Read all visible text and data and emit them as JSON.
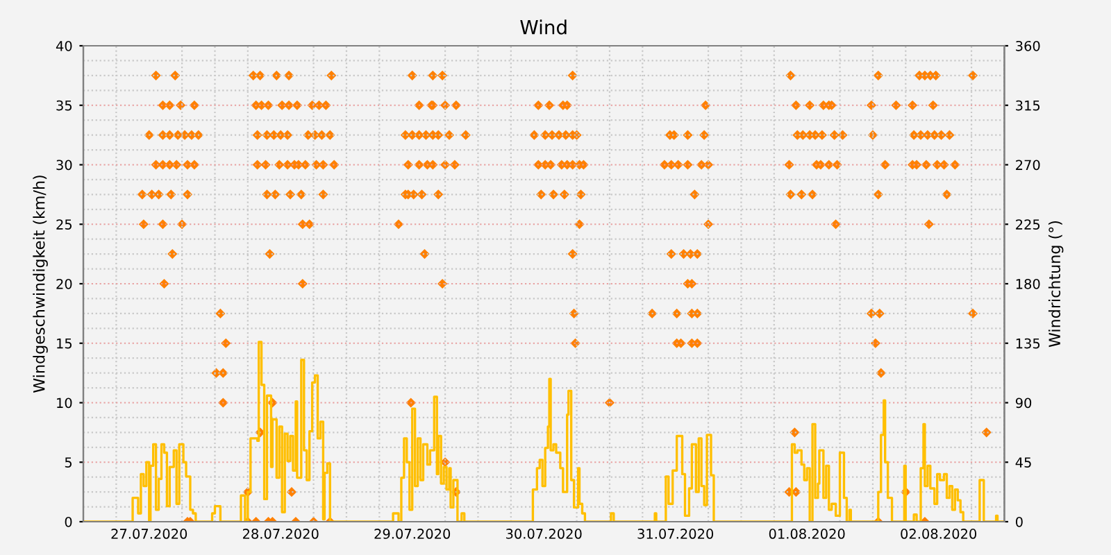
{
  "chart_data": {
    "type": "step",
    "title": "Wind",
    "ylabel": "Windgeschwindigkeit (km/h)",
    "y2label": "Windrichtung (°)",
    "xlim": [
      "2020-07-27T00:00",
      "2020-08-03T00:00"
    ],
    "xticks": [
      {
        "value": "2020-07-27T12:00",
        "label": "27.07.2020"
      },
      {
        "value": "2020-07-28T12:00",
        "label": "28.07.2020"
      },
      {
        "value": "2020-07-29T12:00",
        "label": "29.07.2020"
      },
      {
        "value": "2020-07-30T12:00",
        "label": "30.07.2020"
      },
      {
        "value": "2020-07-31T12:00",
        "label": "31.07.2020"
      },
      {
        "value": "2020-08-01T12:00",
        "label": "01.08.2020"
      },
      {
        "value": "2020-08-02T12:00",
        "label": "02.08.2020"
      }
    ],
    "ylim": [
      0,
      40
    ],
    "yticks": [
      0,
      5,
      10,
      15,
      20,
      25,
      30,
      35,
      40
    ],
    "y2lim": [
      0,
      360
    ],
    "y2ticks": [
      0,
      45,
      90,
      135,
      180,
      225,
      270,
      315,
      360
    ],
    "grid": true,
    "series": [
      {
        "color": "#ffbf00",
        "line_style": "solid",
        "x": [
          "2020-07-27T00:00",
          "2020-07-27T09:00",
          "2020-07-27T10:00",
          "2020-07-27T10:30",
          "2020-07-27T11:00",
          "2020-07-27T11:30",
          "2020-07-27T12:00",
          "2020-07-27T12:15",
          "2020-07-27T12:45",
          "2020-07-27T13:15",
          "2020-07-27T13:45",
          "2020-07-27T14:15",
          "2020-07-27T14:45",
          "2020-07-27T15:15",
          "2020-07-27T15:45",
          "2020-07-27T16:30",
          "2020-07-27T17:00",
          "2020-07-27T17:30",
          "2020-07-27T18:15",
          "2020-07-27T18:45",
          "2020-07-27T19:30",
          "2020-07-27T20:00",
          "2020-07-27T20:30",
          "2020-07-27T23:30",
          "2020-07-28T00:00",
          "2020-07-28T01:00",
          "2020-07-28T04:45",
          "2020-07-28T05:30",
          "2020-07-28T06:00",
          "2020-07-28T06:30",
          "2020-07-28T07:45",
          "2020-07-28T08:00",
          "2020-07-28T08:30",
          "2020-07-28T09:00",
          "2020-07-28T09:30",
          "2020-07-28T10:15",
          "2020-07-28T10:30",
          "2020-07-28T11:15",
          "2020-07-28T11:45",
          "2020-07-28T12:15",
          "2020-07-28T12:45",
          "2020-07-28T13:15",
          "2020-07-28T13:45",
          "2020-07-28T14:15",
          "2020-07-28T14:45",
          "2020-07-28T15:00",
          "2020-07-28T15:45",
          "2020-07-28T16:15",
          "2020-07-28T16:45",
          "2020-07-28T17:15",
          "2020-07-28T17:45",
          "2020-07-28T18:15",
          "2020-07-28T18:45",
          "2020-07-28T19:15",
          "2020-07-28T19:45",
          "2020-07-28T20:00",
          "2020-07-28T20:30",
          "2020-07-28T21:00",
          "2020-07-29T08:30",
          "2020-07-29T09:30",
          "2020-07-29T10:00",
          "2020-07-29T10:30",
          "2020-07-29T11:00",
          "2020-07-29T11:30",
          "2020-07-29T12:00",
          "2020-07-29T12:30",
          "2020-07-29T13:00",
          "2020-07-29T13:30",
          "2020-07-29T14:00",
          "2020-07-29T14:45",
          "2020-07-29T15:15",
          "2020-07-29T16:00",
          "2020-07-29T16:30",
          "2020-07-29T16:45",
          "2020-07-29T17:15",
          "2020-07-29T17:45",
          "2020-07-29T18:15",
          "2020-07-29T18:45",
          "2020-07-29T19:00",
          "2020-07-29T19:30",
          "2020-07-29T20:15",
          "2020-07-29T21:00",
          "2020-07-29T21:30",
          "2020-07-30T10:00",
          "2020-07-30T10:45",
          "2020-07-30T11:15",
          "2020-07-30T11:45",
          "2020-07-30T12:15",
          "2020-07-30T12:45",
          "2020-07-30T13:00",
          "2020-07-30T13:15",
          "2020-07-30T13:45",
          "2020-07-30T14:15",
          "2020-07-30T15:00",
          "2020-07-30T15:30",
          "2020-07-30T16:15",
          "2020-07-30T16:30",
          "2020-07-30T17:00",
          "2020-07-30T17:30",
          "2020-07-30T18:15",
          "2020-07-30T18:30",
          "2020-07-30T19:00",
          "2020-07-30T19:30",
          "2020-07-31T00:15",
          "2020-07-31T00:45",
          "2020-07-31T08:15",
          "2020-07-31T08:30",
          "2020-07-31T10:15",
          "2020-07-31T10:45",
          "2020-07-31T11:30",
          "2020-07-31T12:15",
          "2020-07-31T13:15",
          "2020-07-31T13:45",
          "2020-07-31T14:30",
          "2020-07-31T15:00",
          "2020-07-31T15:45",
          "2020-07-31T16:15",
          "2020-07-31T16:45",
          "2020-07-31T17:15",
          "2020-07-31T17:45",
          "2020-07-31T18:30",
          "2020-07-31T19:00",
          "2020-08-01T09:15",
          "2020-08-01T09:45",
          "2020-08-01T10:15",
          "2020-08-01T11:00",
          "2020-08-01T11:30",
          "2020-08-01T12:00",
          "2020-08-01T12:30",
          "2020-08-01T13:00",
          "2020-08-01T13:30",
          "2020-08-01T14:00",
          "2020-08-01T14:15",
          "2020-08-01T15:00",
          "2020-08-01T15:30",
          "2020-08-01T16:00",
          "2020-08-01T16:30",
          "2020-08-01T17:15",
          "2020-08-01T18:00",
          "2020-08-01T18:45",
          "2020-08-01T19:15",
          "2020-08-01T19:45",
          "2020-08-01T20:00",
          "2020-08-02T01:00",
          "2020-08-02T01:30",
          "2020-08-02T02:00",
          "2020-08-02T02:15",
          "2020-08-02T02:45",
          "2020-08-02T03:30",
          "2020-08-02T05:45",
          "2020-08-02T06:00",
          "2020-08-02T07:30",
          "2020-08-02T08:00",
          "2020-08-02T08:45",
          "2020-08-02T09:15",
          "2020-08-02T09:30",
          "2020-08-02T10:00",
          "2020-08-02T10:30",
          "2020-08-02T11:15",
          "2020-08-02T11:45",
          "2020-08-02T12:15",
          "2020-08-02T13:00",
          "2020-08-02T13:30",
          "2020-08-02T14:00",
          "2020-08-02T14:30",
          "2020-08-02T15:00",
          "2020-08-02T15:30",
          "2020-08-02T16:00",
          "2020-08-02T16:30",
          "2020-08-02T19:30",
          "2020-08-02T20:15",
          "2020-08-02T22:30",
          "2020-08-02T22:45",
          "2020-08-02T23:45"
        ],
        "values": [
          0,
          2.0,
          0.7,
          4.0,
          3.0,
          5.0,
          0,
          4.7,
          6.5,
          1.0,
          3.6,
          6.5,
          5.8,
          1.3,
          4.6,
          6.0,
          1.5,
          6.5,
          5.0,
          3.8,
          1.0,
          0.7,
          0,
          0.7,
          1.3,
          0,
          2.2,
          0,
          2.5,
          7.0,
          6.8,
          15.1,
          11.5,
          1.9,
          10.6,
          4.6,
          8.6,
          3.7,
          8.0,
          0.8,
          7.4,
          5.1,
          7.2,
          4.3,
          10.1,
          3.7,
          13.6,
          6.0,
          3.5,
          7.6,
          11.7,
          12.3,
          7.0,
          8.4,
          0.2,
          4.1,
          4.9,
          0,
          0.7,
          0,
          3.7,
          7.0,
          5.0,
          1.0,
          9.5,
          3.0,
          7.0,
          3.5,
          6.5,
          4.8,
          6.0,
          10.5,
          4.0,
          7.2,
          3.2,
          4.6,
          2.7,
          4.5,
          1.2,
          3.5,
          0,
          0.7,
          0,
          2.7,
          4.5,
          5.2,
          3.0,
          6.2,
          8.0,
          12.0,
          6.0,
          6.5,
          5.8,
          4.5,
          2.5,
          9.0,
          11.0,
          3.5,
          1.2,
          4.5,
          1.5,
          0.7,
          0,
          0.7,
          0,
          0.7,
          0,
          3.8,
          1.5,
          4.3,
          7.2,
          4.0,
          0.5,
          2.8,
          6.5,
          2.5,
          7.0,
          3.0,
          1.4,
          7.3,
          3.9,
          0,
          6.5,
          5.8,
          6.0,
          4.8,
          3.5,
          4.5,
          0,
          8.2,
          2.0,
          3.2,
          6.0,
          2.0,
          4.7,
          1.0,
          1.5,
          0.5,
          5.8,
          2.0,
          0,
          1.0,
          0,
          2.5,
          7.3,
          10.2,
          5.0,
          2.0,
          0,
          4.7,
          0,
          0.6,
          0,
          4.5,
          8.2,
          3.0,
          4.7,
          2.8,
          1.5,
          4.0,
          3.5,
          4.0,
          2.0,
          3.0,
          1.0,
          2.7,
          1.8,
          0.8,
          0,
          3.5,
          0,
          0.5,
          0,
          0
        ]
      },
      {
        "type": "scatter",
        "axis": "y2",
        "color": "#ff8000",
        "marker": "diamond",
        "x": [
          "2020-07-27T13:15",
          "2020-07-27T16:45",
          "2020-07-28T07:00",
          "2020-07-28T08:15",
          "2020-07-28T11:15",
          "2020-07-28T13:30",
          "2020-07-28T21:15",
          "2020-07-29T12:00",
          "2020-07-29T15:45",
          "2020-07-29T17:30",
          "2020-07-30T17:15",
          "2020-08-01T09:00",
          "2020-08-02T01:00",
          "2020-08-02T08:30",
          "2020-08-02T09:30",
          "2020-08-02T10:30",
          "2020-08-02T11:30",
          "2020-08-02T18:15",
          "2020-07-27T14:30",
          "2020-07-27T15:45",
          "2020-07-27T17:45",
          "2020-07-27T20:15",
          "2020-07-28T07:30",
          "2020-07-28T08:30",
          "2020-07-28T09:45",
          "2020-07-28T12:15",
          "2020-07-28T13:30",
          "2020-07-28T15:00",
          "2020-07-28T17:45",
          "2020-07-28T19:00",
          "2020-07-28T20:15",
          "2020-07-29T13:15",
          "2020-07-29T15:30",
          "2020-07-29T15:45",
          "2020-07-29T18:00",
          "2020-07-29T20:00",
          "2020-07-30T11:00",
          "2020-07-30T13:00",
          "2020-07-30T15:30",
          "2020-07-30T16:15",
          "2020-07-31T17:30",
          "2020-08-01T10:00",
          "2020-08-01T12:30",
          "2020-08-01T15:00",
          "2020-08-01T16:00",
          "2020-08-01T16:30",
          "2020-08-01T23:45",
          "2020-08-02T04:15",
          "2020-08-02T07:15",
          "2020-08-02T11:00",
          "2020-07-27T12:00",
          "2020-07-27T14:30",
          "2020-07-27T15:45",
          "2020-07-27T17:15",
          "2020-07-27T18:30",
          "2020-07-27T19:45",
          "2020-07-27T21:00",
          "2020-07-28T07:45",
          "2020-07-28T09:30",
          "2020-07-28T10:45",
          "2020-07-28T12:00",
          "2020-07-28T13:15",
          "2020-07-28T17:00",
          "2020-07-28T18:15",
          "2020-07-28T19:30",
          "2020-07-28T21:00",
          "2020-07-29T10:45",
          "2020-07-29T12:00",
          "2020-07-29T13:15",
          "2020-07-29T14:30",
          "2020-07-29T15:45",
          "2020-07-29T16:45",
          "2020-07-29T18:45",
          "2020-07-29T21:45",
          "2020-07-30T10:15",
          "2020-07-30T12:15",
          "2020-07-30T13:30",
          "2020-07-30T14:45",
          "2020-07-30T16:00",
          "2020-07-30T17:15",
          "2020-07-30T18:00",
          "2020-07-31T11:00",
          "2020-07-31T11:45",
          "2020-07-31T14:15",
          "2020-07-31T17:15",
          "2020-08-01T10:15",
          "2020-08-01T11:15",
          "2020-08-01T12:30",
          "2020-08-01T13:30",
          "2020-08-01T14:45",
          "2020-08-01T17:00",
          "2020-08-01T18:30",
          "2020-08-02T00:00",
          "2020-08-02T07:30",
          "2020-08-02T08:45",
          "2020-08-02T10:00",
          "2020-08-02T11:15",
          "2020-08-02T12:30",
          "2020-08-02T14:00",
          "2020-07-27T13:15",
          "2020-07-27T14:30",
          "2020-07-27T15:45",
          "2020-07-27T17:00",
          "2020-07-27T19:00",
          "2020-07-27T20:15",
          "2020-07-28T07:45",
          "2020-07-28T09:15",
          "2020-07-28T11:45",
          "2020-07-28T13:15",
          "2020-07-28T14:30",
          "2020-07-28T15:15",
          "2020-07-28T16:30",
          "2020-07-28T18:30",
          "2020-07-28T19:45",
          "2020-07-28T21:45",
          "2020-07-29T11:15",
          "2020-07-29T13:15",
          "2020-07-29T14:45",
          "2020-07-29T15:45",
          "2020-07-29T18:00",
          "2020-07-29T19:45",
          "2020-07-30T11:00",
          "2020-07-30T12:15",
          "2020-07-30T13:15",
          "2020-07-30T15:15",
          "2020-07-30T16:15",
          "2020-07-30T17:15",
          "2020-07-30T18:30",
          "2020-07-30T19:15",
          "2020-07-31T10:00",
          "2020-07-31T11:15",
          "2020-07-31T12:30",
          "2020-07-31T14:15",
          "2020-07-31T16:45",
          "2020-07-31T18:00",
          "2020-08-01T08:45",
          "2020-08-01T13:45",
          "2020-08-01T14:30",
          "2020-08-01T16:00",
          "2020-08-01T17:30",
          "2020-08-02T02:15",
          "2020-08-02T07:15",
          "2020-08-02T08:00",
          "2020-08-02T09:45",
          "2020-08-02T11:45",
          "2020-08-02T13:00",
          "2020-08-02T15:00",
          "2020-07-27T10:45",
          "2020-07-27T12:30",
          "2020-07-27T13:45",
          "2020-07-27T16:00",
          "2020-07-27T19:00",
          "2020-07-28T09:30",
          "2020-07-28T11:00",
          "2020-07-28T13:45",
          "2020-07-28T15:45",
          "2020-07-28T19:45",
          "2020-07-29T10:45",
          "2020-07-29T11:15",
          "2020-07-29T12:15",
          "2020-07-29T13:45",
          "2020-07-29T16:45",
          "2020-07-30T11:30",
          "2020-07-30T13:45",
          "2020-07-30T15:45",
          "2020-07-30T18:45",
          "2020-07-31T15:30",
          "2020-08-01T09:00",
          "2020-08-01T11:00",
          "2020-08-01T13:00",
          "2020-08-02T01:00",
          "2020-08-02T13:30",
          "2020-07-27T11:00",
          "2020-07-27T14:30",
          "2020-07-27T18:00",
          "2020-07-28T16:00",
          "2020-07-28T17:15",
          "2020-07-29T09:30",
          "2020-07-30T18:30",
          "2020-07-31T18:00",
          "2020-08-01T17:15",
          "2020-08-02T10:15",
          "2020-07-27T16:15",
          "2020-07-28T10:00",
          "2020-07-29T14:15",
          "2020-07-30T17:15",
          "2020-07-31T11:15",
          "2020-07-31T13:30",
          "2020-07-31T14:45",
          "2020-07-31T16:00",
          "2020-07-27T14:45",
          "2020-07-28T16:00",
          "2020-07-29T17:30",
          "2020-07-31T14:15",
          "2020-07-31T15:00",
          "2020-07-28T01:00",
          "2020-07-30T17:30",
          "2020-07-31T07:45",
          "2020-07-31T12:15",
          "2020-07-31T15:00",
          "2020-07-31T16:00",
          "2020-08-01T23:45",
          "2020-08-02T01:15",
          "2020-08-02T18:15",
          "2020-07-28T02:00",
          "2020-07-30T17:45",
          "2020-07-31T12:15",
          "2020-07-31T13:00",
          "2020-07-31T15:00",
          "2020-07-31T16:00",
          "2020-08-02T00:30",
          "2020-07-28T00:15",
          "2020-07-28T01:30",
          "2020-08-02T01:30",
          "2020-07-28T01:30",
          "2020-07-28T10:30",
          "2020-07-29T11:45",
          "2020-07-31T00:00",
          "2020-07-28T08:15",
          "2020-08-01T09:45",
          "2020-08-02T20:45",
          "2020-07-29T18:00",
          "2020-07-28T06:00",
          "2020-07-28T14:00",
          "2020-07-29T20:00",
          "2020-08-01T08:45",
          "2020-08-01T10:00",
          "2020-08-02T06:00",
          "2020-07-27T19:00",
          "2020-07-27T19:30",
          "2020-07-28T06:00",
          "2020-07-28T07:30",
          "2020-07-28T09:45",
          "2020-07-28T10:30",
          "2020-07-28T14:45",
          "2020-07-28T18:00",
          "2020-07-28T21:00",
          "2020-08-02T01:00",
          "2020-08-02T09:30"
        ],
        "values": [
          337.5,
          337.5,
          337.5,
          337.5,
          337.5,
          337.5,
          337.5,
          337.5,
          337.5,
          337.5,
          337.5,
          337.5,
          337.5,
          337.5,
          337.5,
          337.5,
          337.5,
          337.5,
          315,
          315,
          315,
          315,
          315,
          315,
          315,
          315,
          315,
          315,
          315,
          315,
          315,
          315,
          315,
          315,
          315,
          315,
          315,
          315,
          315,
          315,
          315,
          315,
          315,
          315,
          315,
          315,
          315,
          315,
          315,
          315,
          292.5,
          292.5,
          292.5,
          292.5,
          292.5,
          292.5,
          292.5,
          292.5,
          292.5,
          292.5,
          292.5,
          292.5,
          292.5,
          292.5,
          292.5,
          292.5,
          292.5,
          292.5,
          292.5,
          292.5,
          292.5,
          292.5,
          292.5,
          292.5,
          292.5,
          292.5,
          292.5,
          292.5,
          292.5,
          292.5,
          292.5,
          292.5,
          292.5,
          292.5,
          292.5,
          292.5,
          292.5,
          292.5,
          292.5,
          292.5,
          292.5,
          292.5,
          292.5,
          292.5,
          292.5,
          292.5,
          292.5,
          292.5,
          292.5,
          270,
          270,
          270,
          270,
          270,
          270,
          270,
          270,
          270,
          270,
          270,
          270,
          270,
          270,
          270,
          270,
          270,
          270,
          270,
          270,
          270,
          270,
          270,
          270,
          270,
          270,
          270,
          270,
          270,
          270,
          270,
          270,
          270,
          270,
          270,
          270,
          270,
          270,
          270,
          270,
          270,
          270,
          270,
          270,
          270,
          270,
          270,
          270,
          247.5,
          247.5,
          247.5,
          247.5,
          247.5,
          247.5,
          247.5,
          247.5,
          247.5,
          247.5,
          247.5,
          247.5,
          247.5,
          247.5,
          247.5,
          247.5,
          247.5,
          247.5,
          247.5,
          247.5,
          247.5,
          247.5,
          247.5,
          247.5,
          247.5,
          225,
          225,
          225,
          225,
          225,
          225,
          225,
          225,
          225,
          225,
          202.5,
          202.5,
          202.5,
          202.5,
          202.5,
          202.5,
          202.5,
          202.5,
          180,
          180,
          180,
          180,
          180,
          157.5,
          157.5,
          157.5,
          157.5,
          157.5,
          157.5,
          157.5,
          157.5,
          157.5,
          135,
          135,
          135,
          135,
          135,
          135,
          135,
          112.5,
          112.5,
          112.5,
          90,
          90,
          90,
          90,
          67.5,
          67.5,
          67.5,
          45,
          22.5,
          22.5,
          22.5,
          22.5,
          22.5,
          22.5,
          0,
          0,
          0,
          0,
          0,
          0,
          0,
          0,
          0,
          0,
          0
        ]
      }
    ]
  }
}
